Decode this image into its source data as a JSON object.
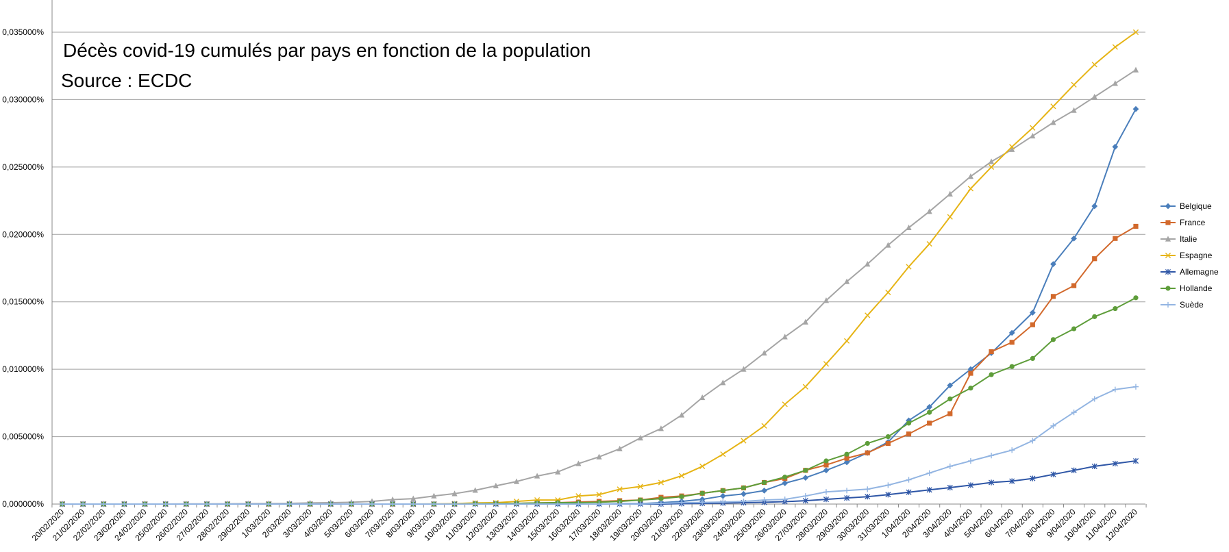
{
  "chart_data": {
    "type": "line",
    "title": "Décès covid-19 cumulés par pays en fonction de la population",
    "subtitle": "Source : ECDC",
    "xlabel": "",
    "ylabel": "",
    "ylim": [
      0,
      0.035
    ],
    "y_tick_values": [
      0,
      0.005,
      0.01,
      0.015,
      0.02,
      0.025,
      0.03,
      0.035
    ],
    "y_tick_labels": [
      "0,000000%",
      "0,005000%",
      "0,010000%",
      "0,015000%",
      "0,020000%",
      "0,025000%",
      "0,030000%",
      "0,035000%"
    ],
    "grid": true,
    "legend_position": "right",
    "categories": [
      "20/02/2020",
      "21/02/2020",
      "22/02/2020",
      "23/02/2020",
      "24/02/2020",
      "25/02/2020",
      "26/02/2020",
      "27/02/2020",
      "28/02/2020",
      "29/02/2020",
      "1/03/2020",
      "2/03/2020",
      "3/03/2020",
      "4/03/2020",
      "5/03/2020",
      "6/03/2020",
      "7/03/2020",
      "8/03/2020",
      "9/03/2020",
      "10/03/2020",
      "11/03/2020",
      "12/03/2020",
      "13/03/2020",
      "14/03/2020",
      "15/03/2020",
      "16/03/2020",
      "17/03/2020",
      "18/03/2020",
      "19/03/2020",
      "20/03/2020",
      "21/03/2020",
      "22/03/2020",
      "23/03/2020",
      "24/03/2020",
      "25/03/2020",
      "26/03/2020",
      "27/03/2020",
      "28/03/2020",
      "29/03/2020",
      "30/03/2020",
      "31/03/2020",
      "1/04/2020",
      "2/04/2020",
      "3/04/2020",
      "4/04/2020",
      "5/04/2020",
      "6/04/2020",
      "7/04/2020",
      "8/04/2020",
      "9/04/2020",
      "10/04/2020",
      "11/04/2020",
      "12/04/2020"
    ],
    "series": [
      {
        "name": "Belgique",
        "color": "#4a7ebb",
        "marker": "diamond",
        "values": [
          0,
          0,
          0,
          0,
          0,
          0,
          0,
          0,
          0,
          0,
          0,
          0,
          0,
          0,
          0,
          0,
          0,
          0,
          0,
          0,
          0,
          0,
          0,
          0,
          0,
          0,
          0,
          3e-05,
          3e-05,
          0.0001,
          0.0002,
          0.00035,
          0.0006,
          0.00075,
          0.001,
          0.00155,
          0.00195,
          0.0025,
          0.0031,
          0.0038,
          0.0046,
          0.0062,
          0.0072,
          0.0088,
          0.01,
          0.0112,
          0.0127,
          0.0142,
          0.0178,
          0.0197,
          0.0221,
          0.0265,
          0.0293
        ]
      },
      {
        "name": "France",
        "color": "#d2692c",
        "marker": "square",
        "values": [
          0,
          0,
          0,
          0,
          0,
          0,
          0,
          0,
          0,
          0,
          0,
          0,
          0,
          0,
          0,
          0,
          0,
          0,
          0,
          0,
          5e-05,
          5e-05,
          5e-05,
          8e-05,
          0.0001,
          0.00015,
          0.0002,
          0.00025,
          0.0003,
          0.0005,
          0.0006,
          0.0008,
          0.001,
          0.0012,
          0.0016,
          0.0019,
          0.0025,
          0.0029,
          0.0034,
          0.0038,
          0.0045,
          0.0052,
          0.006,
          0.0067,
          0.0097,
          0.0113,
          0.012,
          0.0133,
          0.0154,
          0.0162,
          0.0182,
          0.0197,
          0.0206
        ]
      },
      {
        "name": "Italie",
        "color": "#a5a5a5",
        "marker": "triangle",
        "values": [
          0,
          0,
          0,
          0,
          0,
          0,
          1e-05,
          1e-05,
          2e-05,
          3e-05,
          4e-05,
          5e-05,
          8e-05,
          0.0001,
          0.00013,
          0.0002,
          0.00033,
          0.0004,
          0.0006,
          0.00077,
          0.00102,
          0.00135,
          0.00167,
          0.00208,
          0.00238,
          0.003,
          0.0035,
          0.0041,
          0.0049,
          0.0056,
          0.0066,
          0.0079,
          0.009,
          0.01,
          0.0112,
          0.0124,
          0.0135,
          0.0151,
          0.0165,
          0.0178,
          0.0192,
          0.0205,
          0.0217,
          0.023,
          0.0243,
          0.0254,
          0.0263,
          0.0273,
          0.0283,
          0.0292,
          0.0302,
          0.0312,
          0.0322
        ]
      },
      {
        "name": "Espagne",
        "color": "#e6b415",
        "marker": "x",
        "values": [
          0,
          0,
          0,
          0,
          0,
          0,
          0,
          0,
          0,
          0,
          0,
          0,
          0,
          0,
          0,
          0,
          0,
          0,
          1e-05,
          3e-05,
          8e-05,
          0.0001,
          0.0002,
          0.0003,
          0.0003,
          0.0006,
          0.0007,
          0.0011,
          0.0013,
          0.0016,
          0.0021,
          0.0028,
          0.0037,
          0.0047,
          0.0058,
          0.0074,
          0.0087,
          0.0104,
          0.0121,
          0.014,
          0.0157,
          0.0176,
          0.0193,
          0.0213,
          0.0234,
          0.025,
          0.0265,
          0.0279,
          0.0295,
          0.0311,
          0.0326,
          0.0339,
          0.035
        ]
      },
      {
        "name": "Allemagne",
        "color": "#2e56a6",
        "marker": "star",
        "values": [
          0,
          0,
          0,
          0,
          0,
          0,
          0,
          0,
          0,
          0,
          0,
          0,
          0,
          0,
          0,
          0,
          0,
          0,
          0,
          0,
          0,
          0,
          0,
          0,
          0,
          0,
          0,
          0,
          0,
          0,
          3e-05,
          5e-05,
          7e-05,
          0.0001,
          0.00013,
          0.00018,
          0.00025,
          0.00035,
          0.00045,
          0.00055,
          0.0007,
          0.00088,
          0.00105,
          0.00122,
          0.0014,
          0.0016,
          0.0017,
          0.0019,
          0.0022,
          0.0025,
          0.0028,
          0.003,
          0.0032
        ]
      },
      {
        "name": "Hollande",
        "color": "#5e9d3a",
        "marker": "circle",
        "values": [
          0,
          0,
          0,
          0,
          0,
          0,
          0,
          0,
          0,
          0,
          0,
          0,
          0,
          0,
          0,
          0,
          0,
          0,
          0,
          0,
          3e-05,
          5e-05,
          5e-05,
          8e-05,
          0.0001,
          0.0001,
          0.00013,
          0.0002,
          0.0003,
          0.0004,
          0.00055,
          0.0008,
          0.001,
          0.0012,
          0.0016,
          0.002,
          0.0025,
          0.0032,
          0.0037,
          0.0045,
          0.005,
          0.006,
          0.0068,
          0.0078,
          0.0086,
          0.0096,
          0.0102,
          0.0108,
          0.0122,
          0.013,
          0.0139,
          0.0145,
          0.0153
        ]
      },
      {
        "name": "Suède",
        "color": "#93b5e2",
        "marker": "plus",
        "values": [
          0,
          0,
          0,
          0,
          0,
          0,
          0,
          0,
          0,
          0,
          0,
          0,
          0,
          0,
          0,
          0,
          0,
          0,
          0,
          0,
          0,
          0,
          0,
          0,
          0,
          0,
          0,
          0,
          0,
          5e-05,
          0.0001,
          0.00012,
          0.00015,
          0.0002,
          0.0003,
          0.00035,
          0.0006,
          0.0009,
          0.001,
          0.0011,
          0.0014,
          0.0018,
          0.0023,
          0.0028,
          0.0032,
          0.0036,
          0.004,
          0.0047,
          0.0058,
          0.0068,
          0.0078,
          0.0085,
          0.0087
        ]
      }
    ]
  }
}
